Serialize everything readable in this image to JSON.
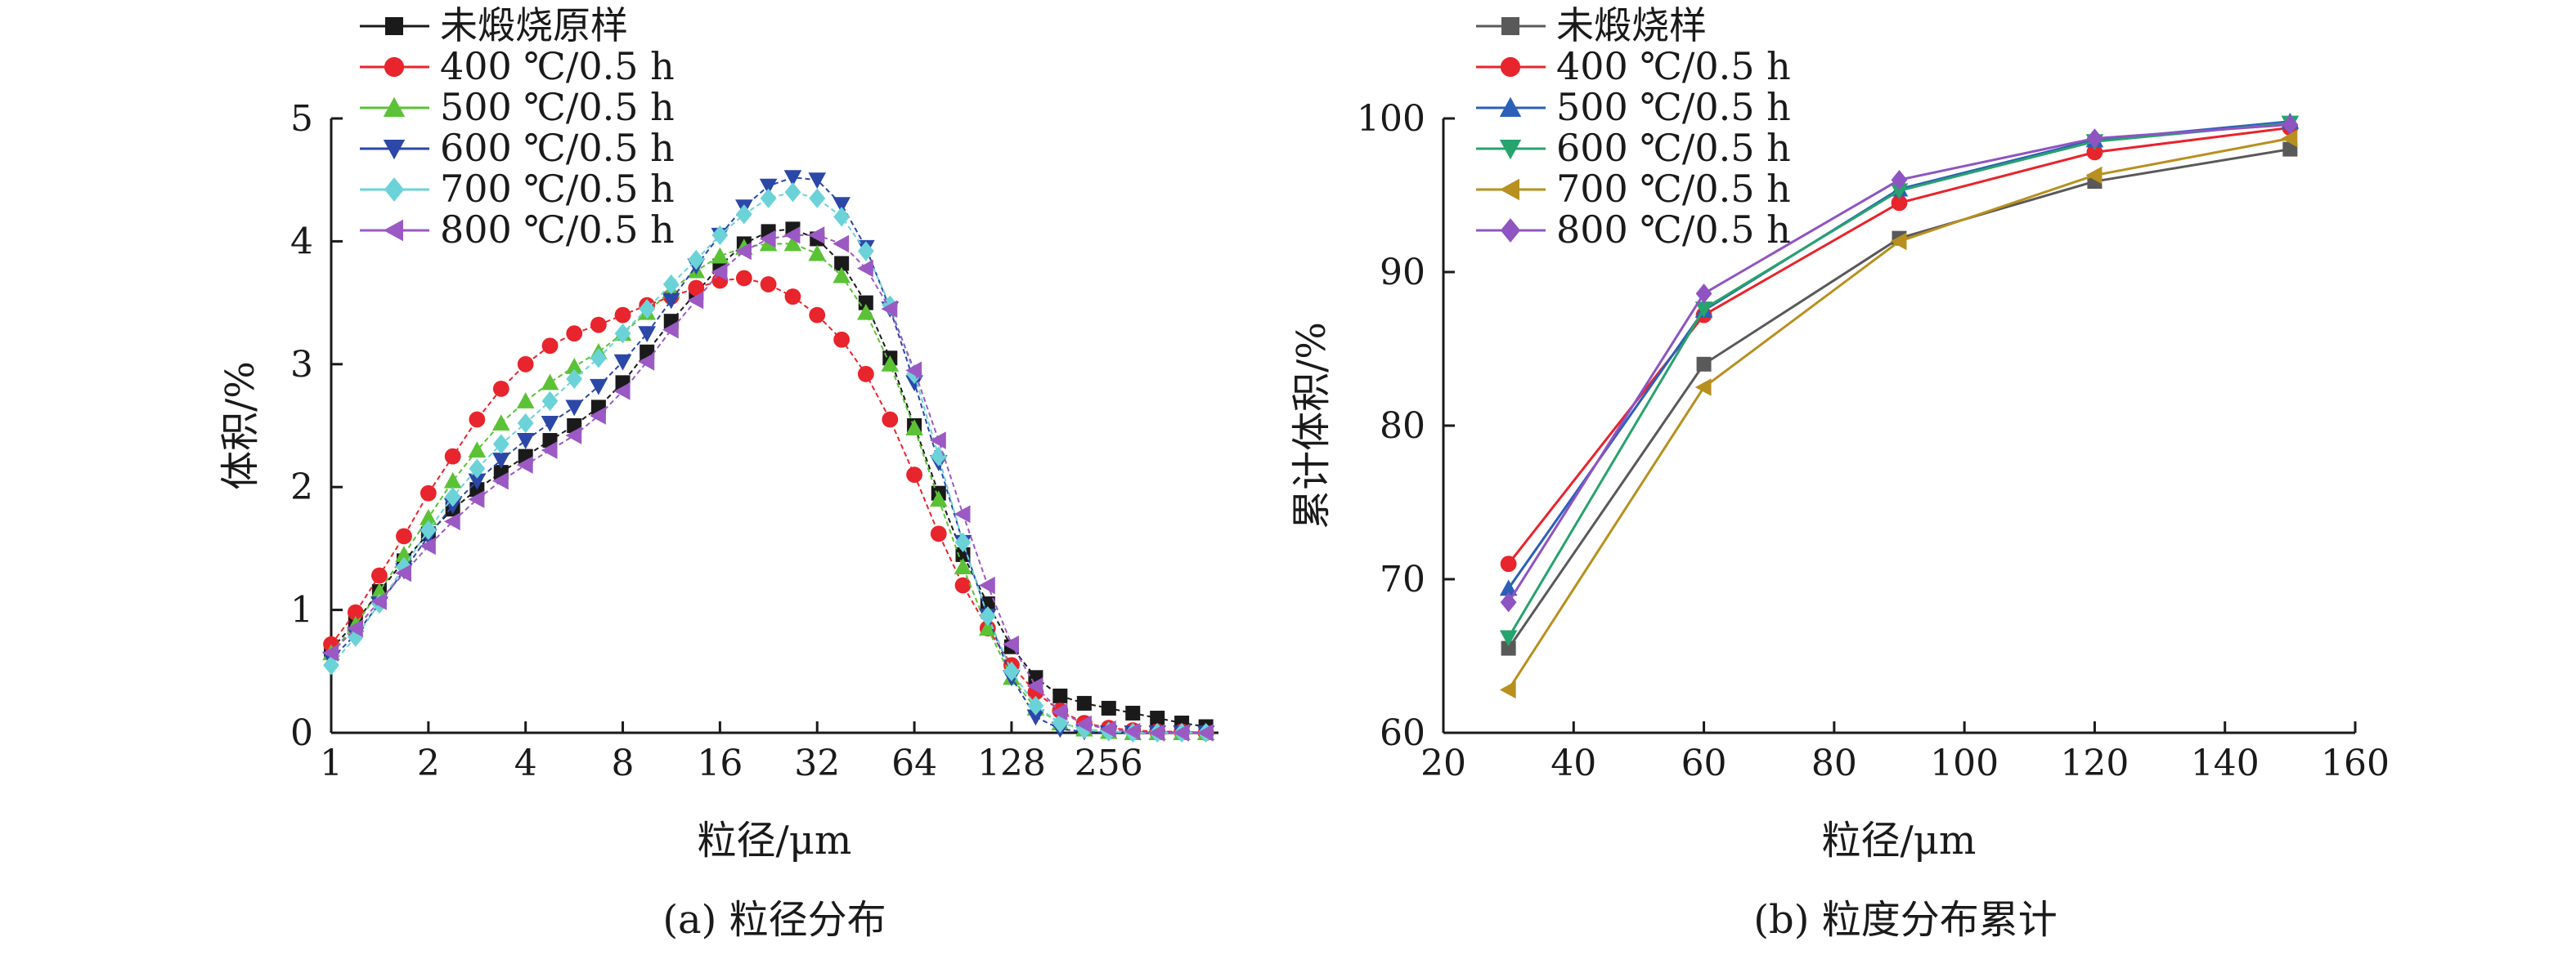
{
  "chart_data": [
    {
      "id": "a",
      "type": "scatter",
      "caption": "(a) 粒径分布",
      "xlabel": "粒径/μm",
      "ylabel": "体积/%",
      "xscale": "log2",
      "xlim": [
        1,
        560
      ],
      "ylim": [
        0,
        5
      ],
      "xticks": [
        1,
        2,
        4,
        8,
        16,
        32,
        64,
        128,
        256
      ],
      "xtick_labels": [
        "1",
        "2",
        "4",
        "8",
        "16",
        "32",
        "64",
        "128",
        "256"
      ],
      "yticks": [
        0,
        1,
        2,
        3,
        4,
        5
      ],
      "legend_position": "top-left",
      "series": [
        {
          "name": "未煅烧原样",
          "color": "#1a1a1a",
          "marker": "square",
          "x": [
            1,
            1.19,
            1.41,
            1.68,
            2,
            2.38,
            2.83,
            3.36,
            4,
            4.76,
            5.66,
            6.73,
            8,
            9.51,
            11.3,
            13.5,
            16,
            19,
            22.6,
            26.9,
            32,
            38.1,
            45.3,
            53.8,
            64,
            76.1,
            90.5,
            108,
            128,
            152,
            181,
            215,
            256,
            304,
            362,
            431,
            512
          ],
          "y": [
            0.68,
            0.9,
            1.15,
            1.4,
            1.62,
            1.82,
            1.98,
            2.12,
            2.25,
            2.38,
            2.5,
            2.65,
            2.85,
            3.1,
            3.35,
            3.58,
            3.8,
            3.98,
            4.08,
            4.1,
            4.02,
            3.82,
            3.5,
            3.05,
            2.5,
            1.95,
            1.45,
            1.05,
            0.7,
            0.45,
            0.3,
            0.24,
            0.2,
            0.16,
            0.12,
            0.08,
            0.05
          ]
        },
        {
          "name": "400 ℃/0.5 h",
          "color": "#e8242c",
          "marker": "circle",
          "x": [
            1,
            1.19,
            1.41,
            1.68,
            2,
            2.38,
            2.83,
            3.36,
            4,
            4.76,
            5.66,
            6.73,
            8,
            9.51,
            11.3,
            13.5,
            16,
            19,
            22.6,
            26.9,
            32,
            38.1,
            45.3,
            53.8,
            64,
            76.1,
            90.5,
            108,
            128,
            152,
            181,
            215,
            256,
            304,
            362,
            431,
            512
          ],
          "y": [
            0.72,
            0.98,
            1.28,
            1.6,
            1.95,
            2.25,
            2.55,
            2.8,
            3.0,
            3.15,
            3.25,
            3.32,
            3.4,
            3.48,
            3.55,
            3.62,
            3.68,
            3.7,
            3.65,
            3.55,
            3.4,
            3.2,
            2.92,
            2.55,
            2.1,
            1.62,
            1.2,
            0.85,
            0.55,
            0.33,
            0.18,
            0.08,
            0.04,
            0.02,
            0.01,
            0.01,
            0
          ]
        },
        {
          "name": "500 ℃/0.5 h",
          "color": "#5bc236",
          "marker": "triangle-up",
          "x": [
            1,
            1.19,
            1.41,
            1.68,
            2,
            2.38,
            2.83,
            3.36,
            4,
            4.76,
            5.66,
            6.73,
            8,
            9.51,
            11.3,
            13.5,
            16,
            19,
            22.6,
            26.9,
            32,
            38.1,
            45.3,
            53.8,
            64,
            76.1,
            90.5,
            108,
            128,
            152,
            181,
            215,
            256,
            304,
            362,
            431,
            512
          ],
          "y": [
            0.65,
            0.88,
            1.15,
            1.45,
            1.75,
            2.05,
            2.3,
            2.52,
            2.7,
            2.85,
            2.98,
            3.1,
            3.25,
            3.42,
            3.6,
            3.76,
            3.88,
            3.95,
            3.98,
            3.98,
            3.9,
            3.72,
            3.42,
            3.0,
            2.48,
            1.9,
            1.35,
            0.85,
            0.45,
            0.2,
            0.08,
            0.03,
            0.01,
            0,
            0,
            0,
            0
          ]
        },
        {
          "name": "600 ℃/0.5 h",
          "color": "#2b47a8",
          "marker": "triangle-down",
          "x": [
            1,
            1.19,
            1.41,
            1.68,
            2,
            2.38,
            2.83,
            3.36,
            4,
            4.76,
            5.66,
            6.73,
            8,
            9.51,
            11.3,
            13.5,
            16,
            19,
            22.6,
            26.9,
            32,
            38.1,
            45.3,
            53.8,
            64,
            76.1,
            90.5,
            108,
            128,
            152,
            181,
            215,
            256,
            304,
            362,
            431,
            512
          ],
          "y": [
            0.6,
            0.8,
            1.05,
            1.32,
            1.6,
            1.85,
            2.05,
            2.22,
            2.38,
            2.52,
            2.65,
            2.82,
            3.02,
            3.25,
            3.52,
            3.8,
            4.05,
            4.28,
            4.45,
            4.52,
            4.5,
            4.3,
            3.95,
            3.45,
            2.85,
            2.2,
            1.55,
            0.95,
            0.45,
            0.13,
            0.03,
            0.01,
            0,
            0,
            0,
            0,
            0
          ]
        },
        {
          "name": "700 ℃/0.5 h",
          "color": "#6bd3d8",
          "marker": "diamond",
          "x": [
            1,
            1.19,
            1.41,
            1.68,
            2,
            2.38,
            2.83,
            3.36,
            4,
            4.76,
            5.66,
            6.73,
            8,
            9.51,
            11.3,
            13.5,
            16,
            19,
            22.6,
            26.9,
            32,
            38.1,
            45.3,
            53.8,
            64,
            76.1,
            90.5,
            108,
            128,
            152,
            181,
            215,
            256,
            304,
            362,
            431,
            512
          ],
          "y": [
            0.55,
            0.78,
            1.05,
            1.35,
            1.65,
            1.92,
            2.15,
            2.35,
            2.52,
            2.7,
            2.88,
            3.05,
            3.25,
            3.45,
            3.65,
            3.85,
            4.05,
            4.22,
            4.35,
            4.4,
            4.35,
            4.2,
            3.92,
            3.48,
            2.92,
            2.25,
            1.55,
            0.95,
            0.5,
            0.22,
            0.08,
            0.03,
            0.01,
            0,
            0,
            0,
            0
          ]
        },
        {
          "name": "800 ℃/0.5 h",
          "color": "#9b59c4",
          "marker": "triangle-left",
          "x": [
            1,
            1.19,
            1.41,
            1.68,
            2,
            2.38,
            2.83,
            3.36,
            4,
            4.76,
            5.66,
            6.73,
            8,
            9.51,
            11.3,
            13.5,
            16,
            19,
            22.6,
            26.9,
            32,
            38.1,
            45.3,
            53.8,
            64,
            76.1,
            90.5,
            108,
            128,
            152,
            181,
            215,
            256,
            304,
            362,
            431,
            512
          ],
          "y": [
            0.65,
            0.85,
            1.07,
            1.3,
            1.52,
            1.72,
            1.9,
            2.05,
            2.18,
            2.3,
            2.42,
            2.58,
            2.78,
            3.02,
            3.28,
            3.52,
            3.75,
            3.92,
            4.02,
            4.05,
            4.05,
            3.98,
            3.78,
            3.45,
            2.95,
            2.38,
            1.78,
            1.2,
            0.72,
            0.38,
            0.17,
            0.07,
            0.03,
            0.01,
            0,
            0,
            0
          ]
        }
      ]
    },
    {
      "id": "b",
      "type": "line",
      "caption": "(b) 粒度分布累计",
      "xlabel": "粒径/μm",
      "ylabel": "累计体积/%",
      "xlim": [
        20,
        160
      ],
      "ylim": [
        60,
        100
      ],
      "xticks": [
        20,
        40,
        60,
        80,
        100,
        120,
        140,
        160
      ],
      "yticks": [
        60,
        70,
        80,
        90,
        100
      ],
      "legend_position": "top-left",
      "x": [
        30,
        60,
        90,
        120,
        150
      ],
      "series": [
        {
          "name": "未煅烧样",
          "color": "#595959",
          "marker": "square",
          "values": [
            65.5,
            84.0,
            92.2,
            95.9,
            98.0
          ]
        },
        {
          "name": "400 ℃/0.5 h",
          "color": "#e8242c",
          "marker": "circle",
          "values": [
            71.0,
            87.2,
            94.5,
            97.8,
            99.4
          ]
        },
        {
          "name": "500 ℃/0.5 h",
          "color": "#2b5fb8",
          "marker": "triangle-up",
          "values": [
            69.4,
            87.5,
            95.4,
            98.6,
            99.8
          ]
        },
        {
          "name": "600 ℃/0.5 h",
          "color": "#27a36d",
          "marker": "triangle-down",
          "values": [
            66.2,
            87.6,
            95.3,
            98.5,
            99.7
          ]
        },
        {
          "name": "700 ℃/0.5 h",
          "color": "#b8901f",
          "marker": "triangle-left",
          "values": [
            62.8,
            82.5,
            92.0,
            96.3,
            98.7
          ]
        },
        {
          "name": "800 ℃/0.5 h",
          "color": "#8e54c2",
          "marker": "diamond",
          "values": [
            68.5,
            88.6,
            96.0,
            98.7,
            99.6
          ]
        }
      ]
    }
  ]
}
